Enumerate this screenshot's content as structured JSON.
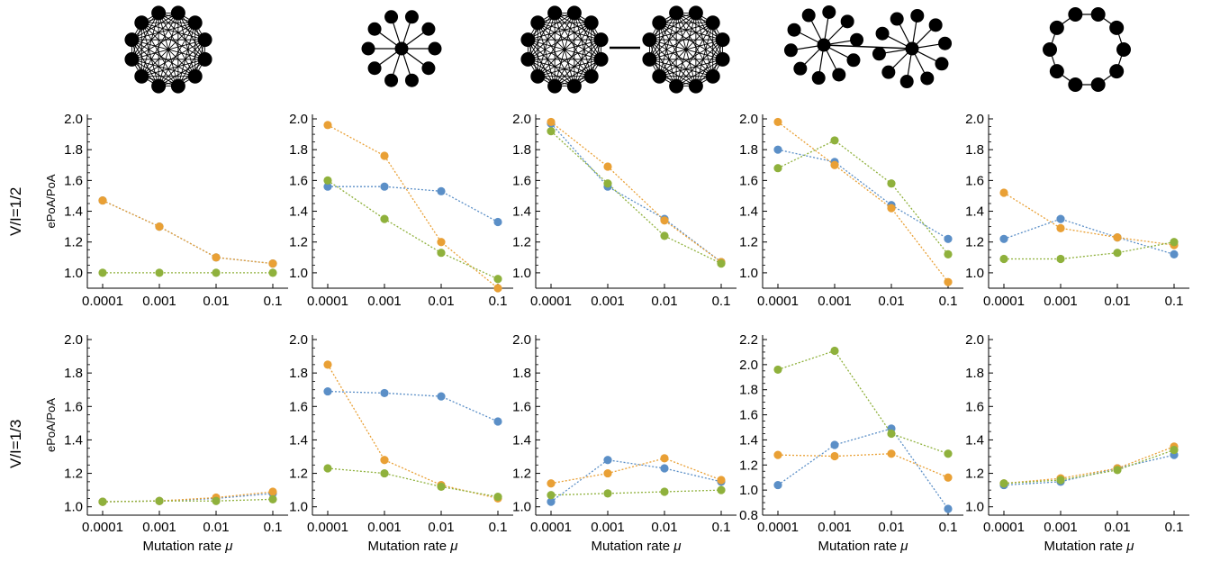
{
  "row_labels": [
    "V/I=1/2",
    "V/I=1/3"
  ],
  "colors": {
    "blue": "#5b8fc7",
    "orange": "#e9a035",
    "green": "#8fb13c"
  },
  "networks": [
    "complete graph",
    "star",
    "two connected complete graphs",
    "two connected stars",
    "ring"
  ],
  "chart_data": [
    {
      "type": "scatter",
      "panel": "r1c1",
      "ylabel": "ePoA/PoA",
      "xlabel": "",
      "x": [
        "0.0001",
        "0.001",
        "0.01",
        "0.1"
      ],
      "ylim": [
        0.9,
        2.0
      ],
      "yticks": [
        "1.0",
        "1.2",
        "1.4",
        "1.6",
        "1.8",
        "2.0"
      ],
      "series": [
        {
          "color": "blue",
          "values": [
            1.47,
            1.3,
            1.1,
            1.06
          ]
        },
        {
          "color": "orange",
          "values": [
            1.47,
            1.3,
            1.1,
            1.06
          ]
        },
        {
          "color": "green",
          "values": [
            1.0,
            1.0,
            1.0,
            1.0
          ]
        }
      ]
    },
    {
      "type": "scatter",
      "panel": "r1c2",
      "ylabel": "",
      "xlabel": "",
      "x": [
        "0.0001",
        "0.001",
        "0.01",
        "0.1"
      ],
      "ylim": [
        0.9,
        2.0
      ],
      "yticks": [
        "1.0",
        "1.2",
        "1.4",
        "1.6",
        "1.8",
        "2.0"
      ],
      "series": [
        {
          "color": "blue",
          "values": [
            1.56,
            1.56,
            1.53,
            1.33
          ]
        },
        {
          "color": "orange",
          "values": [
            1.96,
            1.76,
            1.2,
            0.9
          ]
        },
        {
          "color": "green",
          "values": [
            1.6,
            1.35,
            1.13,
            0.96
          ]
        }
      ]
    },
    {
      "type": "scatter",
      "panel": "r1c3",
      "ylabel": "",
      "xlabel": "",
      "x": [
        "0.0001",
        "0.001",
        "0.01",
        "0.1"
      ],
      "ylim": [
        0.9,
        2.0
      ],
      "yticks": [
        "1.0",
        "1.2",
        "1.4",
        "1.6",
        "1.8",
        "2.0"
      ],
      "series": [
        {
          "color": "blue",
          "values": [
            1.97,
            1.56,
            1.35,
            1.07
          ]
        },
        {
          "color": "orange",
          "values": [
            1.98,
            1.69,
            1.34,
            1.07
          ]
        },
        {
          "color": "green",
          "values": [
            1.92,
            1.58,
            1.24,
            1.06
          ]
        }
      ]
    },
    {
      "type": "scatter",
      "panel": "r1c4",
      "ylabel": "",
      "xlabel": "",
      "x": [
        "0.0001",
        "0.001",
        "0.01",
        "0.1"
      ],
      "ylim": [
        0.9,
        2.0
      ],
      "yticks": [
        "1.0",
        "1.2",
        "1.4",
        "1.6",
        "1.8",
        "2.0"
      ],
      "series": [
        {
          "color": "blue",
          "values": [
            1.8,
            1.72,
            1.44,
            1.22
          ]
        },
        {
          "color": "orange",
          "values": [
            1.98,
            1.7,
            1.42,
            0.94
          ]
        },
        {
          "color": "green",
          "values": [
            1.68,
            1.86,
            1.58,
            1.12
          ]
        }
      ]
    },
    {
      "type": "scatter",
      "panel": "r1c5",
      "ylabel": "",
      "xlabel": "",
      "x": [
        "0.0001",
        "0.001",
        "0.01",
        "0.1"
      ],
      "ylim": [
        0.9,
        2.0
      ],
      "yticks": [
        "1.0",
        "1.2",
        "1.4",
        "1.6",
        "1.8",
        "2.0"
      ],
      "series": [
        {
          "color": "blue",
          "values": [
            1.22,
            1.35,
            1.23,
            1.12
          ]
        },
        {
          "color": "orange",
          "values": [
            1.52,
            1.29,
            1.23,
            1.18
          ]
        },
        {
          "color": "green",
          "values": [
            1.09,
            1.09,
            1.13,
            1.2
          ]
        }
      ]
    },
    {
      "type": "scatter",
      "panel": "r2c1",
      "ylabel": "ePoA/PoA",
      "xlabel": "Mutation rate μ",
      "x": [
        "0.0001",
        "0.001",
        "0.01",
        "0.1"
      ],
      "ylim": [
        0.95,
        2.0
      ],
      "yticks": [
        "1.0",
        "1.2",
        "1.4",
        "1.6",
        "1.8",
        "2.0"
      ],
      "series": [
        {
          "color": "blue",
          "values": [
            1.03,
            1.035,
            1.05,
            1.08
          ]
        },
        {
          "color": "orange",
          "values": [
            1.03,
            1.035,
            1.055,
            1.09
          ]
        },
        {
          "color": "green",
          "values": [
            1.03,
            1.035,
            1.035,
            1.045
          ]
        }
      ]
    },
    {
      "type": "scatter",
      "panel": "r2c2",
      "ylabel": "",
      "xlabel": "Mutation rate μ",
      "x": [
        "0.0001",
        "0.001",
        "0.01",
        "0.1"
      ],
      "ylim": [
        0.95,
        2.0
      ],
      "yticks": [
        "1.0",
        "1.2",
        "1.4",
        "1.6",
        "1.8",
        "2.0"
      ],
      "series": [
        {
          "color": "blue",
          "values": [
            1.69,
            1.68,
            1.66,
            1.51
          ]
        },
        {
          "color": "orange",
          "values": [
            1.85,
            1.28,
            1.13,
            1.05
          ]
        },
        {
          "color": "green",
          "values": [
            1.23,
            1.2,
            1.12,
            1.06
          ]
        }
      ]
    },
    {
      "type": "scatter",
      "panel": "r2c3",
      "ylabel": "",
      "xlabel": "Mutation rate μ",
      "x": [
        "0.0001",
        "0.001",
        "0.01",
        "0.1"
      ],
      "ylim": [
        0.95,
        2.0
      ],
      "yticks": [
        "1.0",
        "1.2",
        "1.4",
        "1.6",
        "1.8",
        "2.0"
      ],
      "series": [
        {
          "color": "blue",
          "values": [
            1.03,
            1.28,
            1.23,
            1.15
          ]
        },
        {
          "color": "orange",
          "values": [
            1.14,
            1.2,
            1.29,
            1.16
          ]
        },
        {
          "color": "green",
          "values": [
            1.07,
            1.08,
            1.09,
            1.1
          ]
        }
      ]
    },
    {
      "type": "scatter",
      "panel": "r2c4",
      "ylabel": "",
      "xlabel": "Mutation rate μ",
      "x": [
        "0.0001",
        "0.001",
        "0.01",
        "0.1"
      ],
      "ylim": [
        0.8,
        2.2
      ],
      "yticks": [
        "0.8",
        "1.0",
        "1.2",
        "1.4",
        "1.6",
        "1.8",
        "2.0",
        "2.2"
      ],
      "series": [
        {
          "color": "blue",
          "values": [
            1.04,
            1.36,
            1.49,
            0.85
          ]
        },
        {
          "color": "orange",
          "values": [
            1.28,
            1.27,
            1.29,
            1.1
          ]
        },
        {
          "color": "green",
          "values": [
            1.96,
            2.11,
            1.45,
            1.29
          ]
        }
      ]
    },
    {
      "type": "scatter",
      "panel": "r2c5",
      "ylabel": "",
      "xlabel": "Mutation rate μ",
      "x": [
        "0.0001",
        "0.001",
        "0.01",
        "0.1"
      ],
      "ylim": [
        0.95,
        2.0
      ],
      "yticks": [
        "1.0",
        "1.2",
        "1.4",
        "1.6",
        "1.8",
        "2.0"
      ],
      "series": [
        {
          "color": "blue",
          "values": [
            1.13,
            1.15,
            1.23,
            1.31
          ]
        },
        {
          "color": "orange",
          "values": [
            1.14,
            1.17,
            1.23,
            1.36
          ]
        },
        {
          "color": "green",
          "values": [
            1.14,
            1.16,
            1.22,
            1.34
          ]
        }
      ]
    }
  ]
}
